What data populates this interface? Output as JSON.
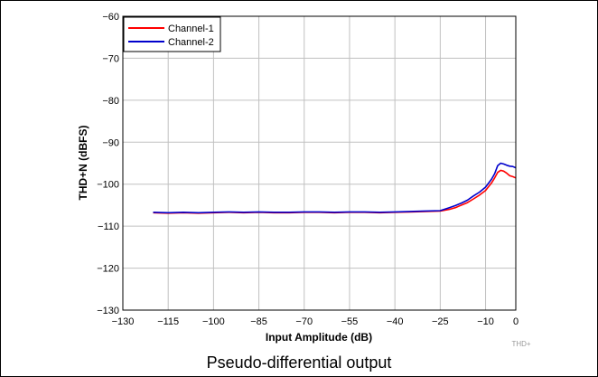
{
  "caption": "Pseudo-differential output",
  "chart_data": {
    "type": "line",
    "title": "",
    "xlabel": "Input Amplitude (dB)",
    "ylabel": "THD+N (dBFS)",
    "xlim": [
      -130,
      0
    ],
    "ylim": [
      -130,
      -60
    ],
    "xticks": [
      -130,
      -115,
      -100,
      -85,
      -70,
      -55,
      -40,
      -25,
      -10,
      0
    ],
    "yticks": [
      -60,
      -70,
      -80,
      -90,
      -100,
      -110,
      -120,
      -130
    ],
    "grid": true,
    "legend_position": "top-left",
    "watermark": "THD+",
    "series": [
      {
        "name": "Channel-1",
        "color": "#ff0000",
        "x": [
          -120,
          -115,
          -110,
          -105,
          -100,
          -95,
          -90,
          -85,
          -80,
          -75,
          -70,
          -65,
          -60,
          -55,
          -50,
          -45,
          -40,
          -35,
          -30,
          -25,
          -22,
          -20,
          -18,
          -16,
          -14,
          -12,
          -10,
          -8,
          -7,
          -6,
          -5,
          -4,
          -3,
          -2,
          -1,
          0
        ],
        "y": [
          -106.8,
          -106.9,
          -106.8,
          -106.9,
          -106.8,
          -106.7,
          -106.8,
          -106.7,
          -106.8,
          -106.8,
          -106.7,
          -106.7,
          -106.8,
          -106.7,
          -106.7,
          -106.8,
          -106.7,
          -106.6,
          -106.5,
          -106.4,
          -106.0,
          -105.6,
          -105.0,
          -104.4,
          -103.5,
          -102.6,
          -101.5,
          -99.7,
          -98.5,
          -97.2,
          -96.7,
          -96.9,
          -97.4,
          -98.0,
          -98.2,
          -98.5
        ]
      },
      {
        "name": "Channel-2",
        "color": "#0000cc",
        "x": [
          -120,
          -115,
          -110,
          -105,
          -100,
          -95,
          -90,
          -85,
          -80,
          -75,
          -70,
          -65,
          -60,
          -55,
          -50,
          -45,
          -40,
          -35,
          -30,
          -25,
          -22,
          -20,
          -18,
          -16,
          -14,
          -12,
          -10,
          -8,
          -7,
          -6,
          -5,
          -4,
          -3,
          -2,
          -1,
          0
        ],
        "y": [
          -106.7,
          -106.8,
          -106.7,
          -106.8,
          -106.7,
          -106.6,
          -106.7,
          -106.6,
          -106.7,
          -106.7,
          -106.6,
          -106.6,
          -106.7,
          -106.6,
          -106.6,
          -106.7,
          -106.6,
          -106.5,
          -106.4,
          -106.3,
          -105.6,
          -105.1,
          -104.5,
          -103.8,
          -102.8,
          -101.9,
          -100.7,
          -98.8,
          -97.5,
          -95.6,
          -95.0,
          -95.2,
          -95.5,
          -95.7,
          -95.8,
          -96.1
        ]
      }
    ]
  }
}
